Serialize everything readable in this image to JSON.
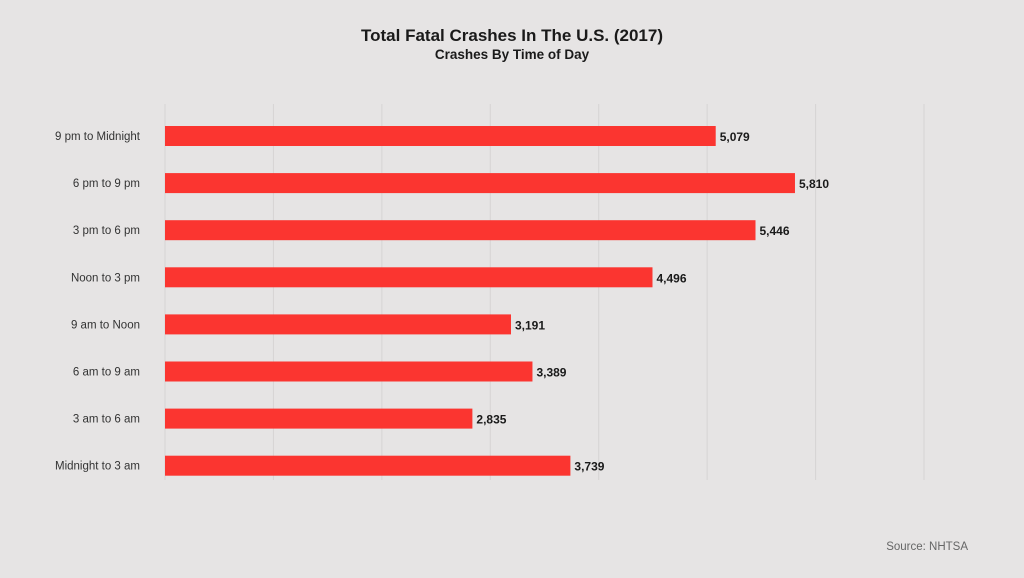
{
  "chart_data": {
    "type": "bar",
    "orientation": "horizontal",
    "title": "Total Fatal Crashes In The U.S. (2017)",
    "subtitle": "Crashes By Time of Day",
    "categories": [
      "9 pm to Midnight",
      "6 pm to 9 pm",
      "3 pm to 6 pm",
      "Noon to 3 pm",
      "9 am to Noon",
      "6 am to 9 am",
      "3 am to 6 am",
      "Midnight to 3 am"
    ],
    "values": [
      5079,
      5810,
      5446,
      4496,
      3191,
      3389,
      2835,
      3739
    ],
    "value_labels": [
      "5,079",
      "5,810",
      "5,446",
      "4,496",
      "3,191",
      "3,389",
      "2,835",
      "3,739"
    ],
    "xlim": [
      0,
      7000
    ],
    "grid": true,
    "gridlines": [
      0,
      1000,
      2000,
      3000,
      4000,
      5000,
      6000,
      7000
    ],
    "bar_color": "#fb3530",
    "xlabel": "",
    "ylabel": ""
  },
  "source": "Source: NHTSA"
}
